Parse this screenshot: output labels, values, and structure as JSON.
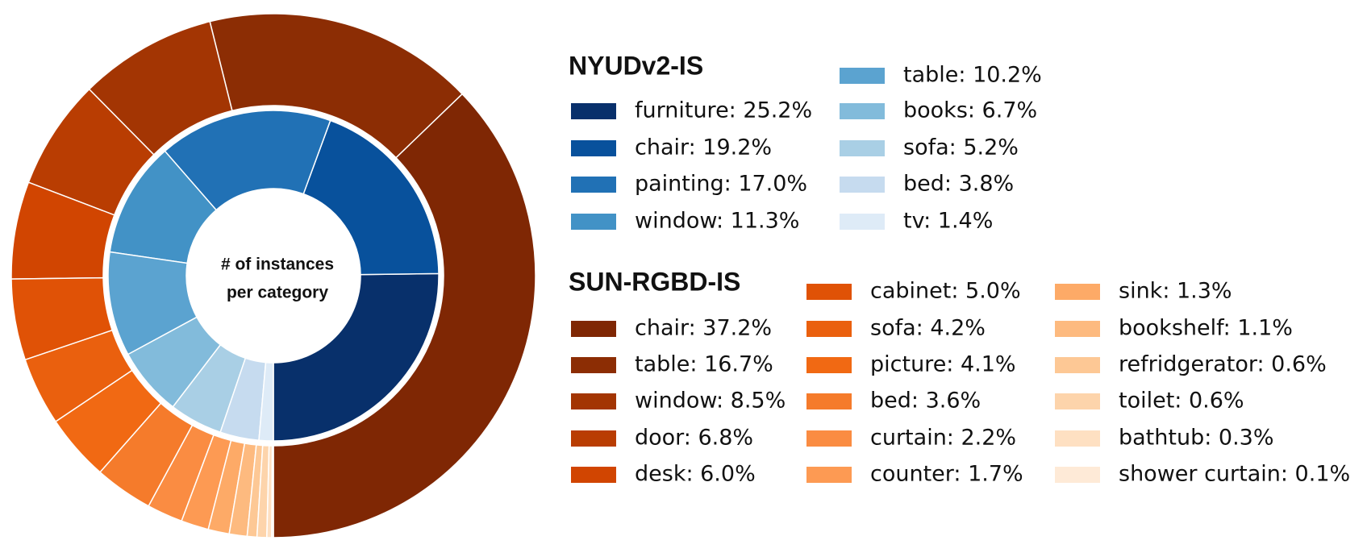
{
  "chart_data": {
    "type": "pie",
    "center_text": [
      "# of instances",
      "per category"
    ],
    "series": [
      {
        "name": "NYUDv2-IS",
        "labels": [
          "furniture: 25.2%",
          "chair: 19.2%",
          "painting: 17.0%",
          "window: 11.3%",
          "table: 10.2%",
          "books: 6.7%",
          "sofa: 5.2%",
          "bed: 3.8%",
          "tv: 1.4%"
        ],
        "values": [
          25.2,
          19.2,
          17.0,
          11.3,
          10.2,
          6.7,
          5.2,
          3.8,
          1.4
        ],
        "colors": [
          "#08306b",
          "#08519c",
          "#2171b5",
          "#4292c6",
          "#5ba3d0",
          "#82bbdb",
          "#a9cfe5",
          "#c6dbef",
          "#deebf7"
        ]
      },
      {
        "name": "SUN-RGBD-IS",
        "labels": [
          "chair: 37.2%",
          "table: 16.7%",
          "window: 8.5%",
          "door: 6.8%",
          "desk: 6.0%",
          "cabinet: 5.0%",
          "sofa: 4.2%",
          "picture: 4.1%",
          "bed: 3.6%",
          "curtain: 2.2%",
          "counter: 1.7%",
          "sink: 1.3%",
          "bookshelf: 1.1%",
          "refridgerator: 0.6%",
          "toilet: 0.6%",
          "bathtub: 0.3%",
          "shower curtain: 0.1%"
        ],
        "values": [
          37.2,
          16.7,
          8.5,
          6.8,
          6.0,
          5.0,
          4.2,
          4.1,
          3.6,
          2.2,
          1.7,
          1.3,
          1.1,
          0.6,
          0.6,
          0.3,
          0.1
        ],
        "colors": [
          "#7f2704",
          "#8c2d04",
          "#a33503",
          "#b93d02",
          "#d14501",
          "#e05206",
          "#ea600e",
          "#f16913",
          "#f57b2b",
          "#fa8c42",
          "#fd9a53",
          "#fdaa67",
          "#fdba7f",
          "#fdc895",
          "#fdd4ab",
          "#fee0c2",
          "#feead7"
        ]
      }
    ]
  }
}
